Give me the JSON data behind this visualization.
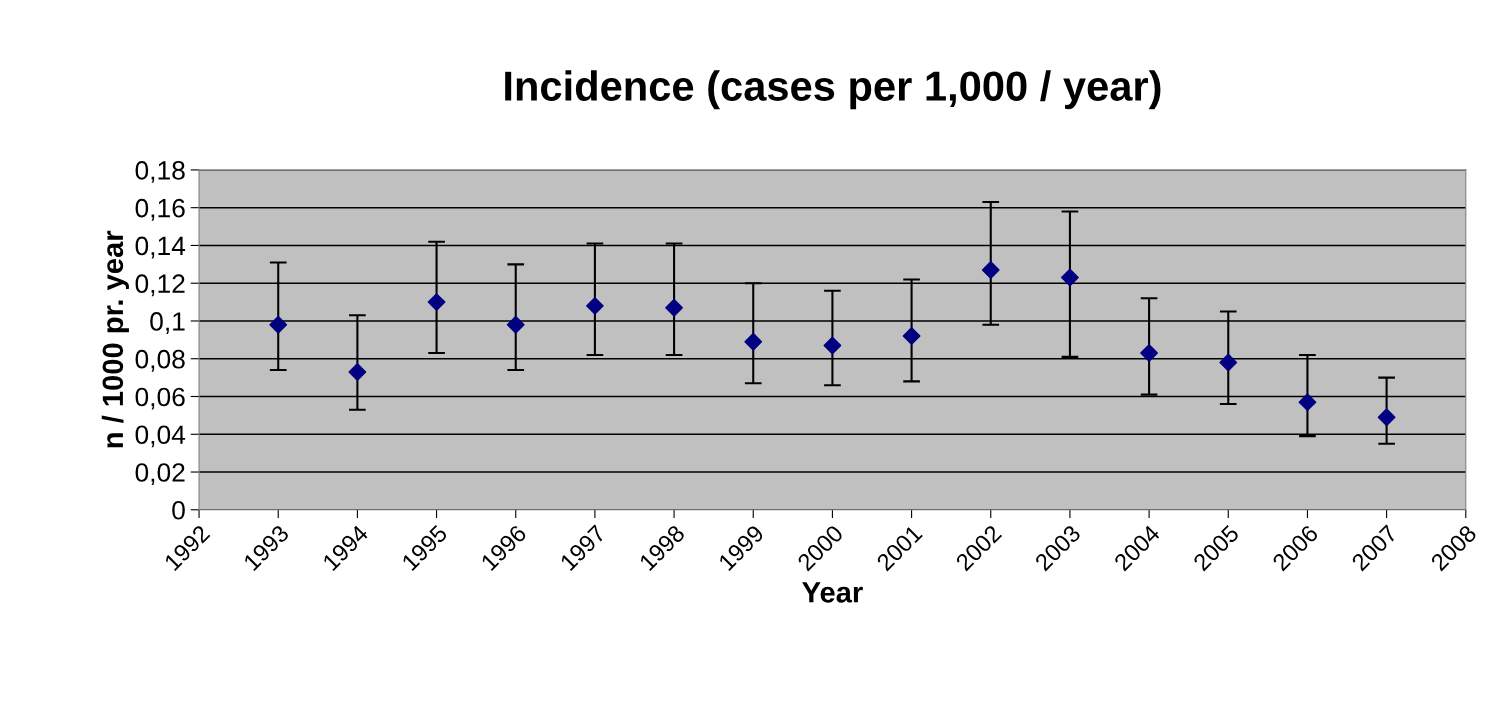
{
  "chart_data": {
    "type": "scatter",
    "title": "Incidence (cases per 1,000 / year)",
    "xlabel": "Year",
    "ylabel": "n / 1000 pr. year",
    "x": [
      1993,
      1994,
      1995,
      1996,
      1997,
      1998,
      1999,
      2000,
      2001,
      2002,
      2003,
      2004,
      2005,
      2006,
      2007
    ],
    "series": [
      {
        "color": "#000080",
        "values": [
          0.098,
          0.073,
          0.11,
          0.098,
          0.108,
          0.107,
          0.089,
          0.087,
          0.092,
          0.127,
          0.123,
          0.083,
          0.078,
          0.057,
          0.049
        ],
        "errors": [
          [
            0.074,
            0.131
          ],
          [
            0.053,
            0.103
          ],
          [
            0.083,
            0.142
          ],
          [
            0.074,
            0.13
          ],
          [
            0.082,
            0.141
          ],
          [
            0.082,
            0.141
          ],
          [
            0.067,
            0.12
          ],
          [
            0.066,
            0.116
          ],
          [
            0.068,
            0.122
          ],
          [
            0.098,
            0.163
          ],
          [
            0.081,
            0.158
          ],
          [
            0.061,
            0.112
          ],
          [
            0.056,
            0.105
          ],
          [
            0.039,
            0.082
          ],
          [
            0.035,
            0.07
          ]
        ]
      }
    ],
    "marker": "diamond",
    "grid": "y",
    "legend": false,
    "xlim": [
      1992,
      2008
    ],
    "xticks": [
      1992,
      1993,
      1994,
      1995,
      1996,
      1997,
      1998,
      1999,
      2000,
      2001,
      2002,
      2003,
      2004,
      2005,
      2006,
      2007,
      2008
    ],
    "ylim": [
      0,
      0.18
    ],
    "yticks": [
      0,
      {
        "value": 0.02,
        "label": "0,02"
      },
      {
        "value": 0.04,
        "label": "0,04"
      },
      {
        "value": 0.06,
        "label": "0,06"
      },
      {
        "value": 0.08,
        "label": "0,08"
      },
      {
        "value": 0.1,
        "label": "0,1"
      },
      {
        "value": 0.12,
        "label": "0,12"
      },
      {
        "value": 0.14,
        "label": "0,14"
      },
      {
        "value": 0.16,
        "label": "0,16"
      },
      {
        "value": 0.18,
        "label": "0,18"
      }
    ]
  }
}
